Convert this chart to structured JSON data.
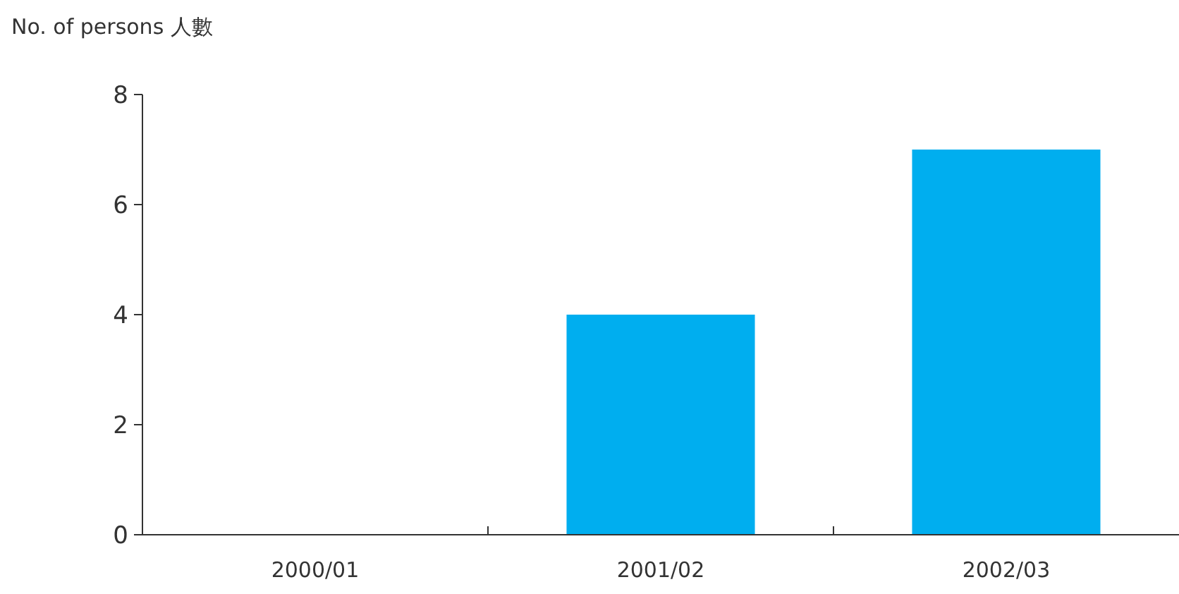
{
  "chart_data": {
    "type": "bar",
    "ylabel": "No. of persons 人數",
    "categories": [
      "2000/01",
      "2001/02",
      "2002/03"
    ],
    "values": [
      0,
      4,
      7
    ],
    "color": "#00aeef",
    "ylim": [
      0,
      8
    ],
    "yticks": [
      0,
      2,
      4,
      6,
      8
    ]
  }
}
